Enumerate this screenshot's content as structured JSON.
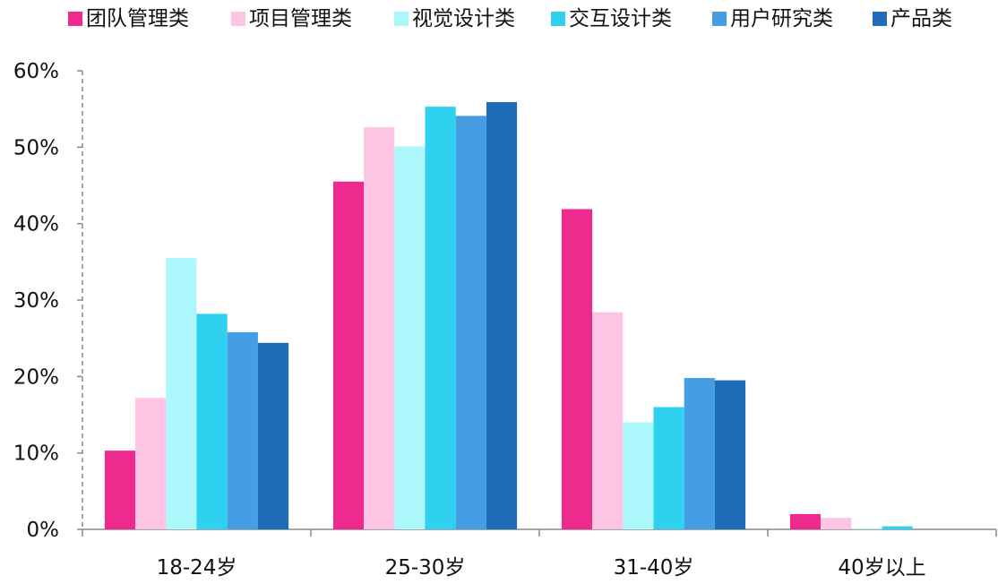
{
  "chart_data": {
    "type": "bar",
    "title": "",
    "xlabel": "",
    "ylabel": "",
    "categories": [
      "18-24岁",
      "25-30岁",
      "31-40岁",
      "40岁以上"
    ],
    "series": [
      {
        "name": "团队管理类",
        "color": "#EF2A8E",
        "values": [
          10.3,
          45.5,
          41.9,
          2.0
        ]
      },
      {
        "name": "项目管理类",
        "color": "#FDC4E4",
        "values": [
          17.2,
          52.6,
          28.4,
          1.5
        ]
      },
      {
        "name": "视觉设计类",
        "color": "#ACF7FC",
        "values": [
          35.5,
          50.1,
          14.0,
          0.1
        ]
      },
      {
        "name": "交互设计类",
        "color": "#2ED1F0",
        "values": [
          28.2,
          55.3,
          16.0,
          0.4
        ]
      },
      {
        "name": "用户研究类",
        "color": "#459DE4",
        "values": [
          25.8,
          54.1,
          19.8,
          0.0
        ]
      },
      {
        "name": "产品类",
        "color": "#1F6CB8",
        "values": [
          24.4,
          55.9,
          19.5,
          0.0
        ]
      }
    ],
    "ylim": [
      0,
      60
    ],
    "yticks": [
      0,
      10,
      20,
      30,
      40,
      50,
      60
    ],
    "ytick_labels": [
      "0%",
      "10%",
      "20%",
      "30%",
      "40%",
      "50%",
      "60%"
    ],
    "legend_position": "top",
    "grid": false
  }
}
